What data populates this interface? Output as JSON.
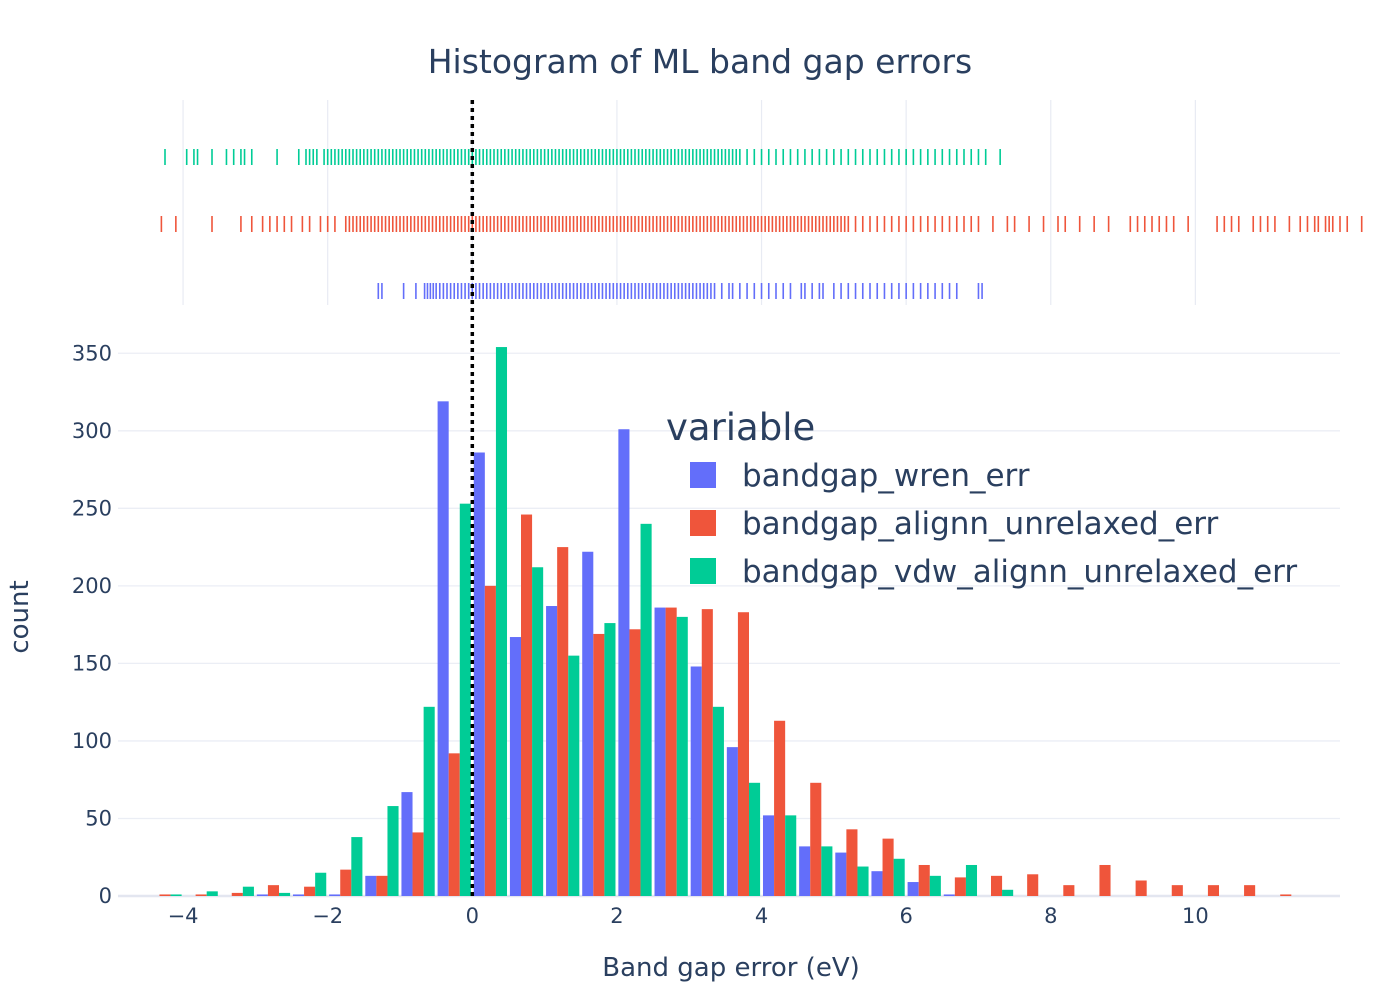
{
  "chart_data": {
    "type": "bar",
    "title": "Histogram of ML band gap errors",
    "xlabel": "Band gap error (eV)",
    "ylabel": "count",
    "xlim": [
      -4.9,
      12.0
    ],
    "ylim": [
      0,
      365
    ],
    "x_ticks": [
      -4,
      -2,
      0,
      2,
      4,
      6,
      8,
      10
    ],
    "x_tick_labels": [
      "−4",
      "−2",
      "0",
      "2",
      "4",
      "6",
      "8",
      "10"
    ],
    "y_ticks": [
      0,
      50,
      100,
      150,
      200,
      250,
      300,
      350
    ],
    "y_tick_labels": [
      "0",
      "50",
      "100",
      "150",
      "200",
      "250",
      "300",
      "350"
    ],
    "grid": true,
    "bin_width": 0.5,
    "vline": {
      "x": 0,
      "style": "dotted",
      "color": "#000000"
    },
    "legend": {
      "title": "variable",
      "placement": "top-right-inside"
    },
    "bin_centers": [
      -4.25,
      -3.75,
      -3.25,
      -2.75,
      -2.25,
      -1.75,
      -1.25,
      -0.75,
      -0.25,
      0.25,
      0.75,
      1.25,
      1.75,
      2.25,
      2.75,
      3.25,
      3.75,
      4.25,
      4.75,
      5.25,
      5.75,
      6.25,
      6.75,
      7.25,
      7.75,
      8.25,
      8.75,
      9.25,
      9.75,
      10.25,
      10.75,
      11.25
    ],
    "series": [
      {
        "name": "bandgap_wren_err",
        "color": "#636efa",
        "values": [
          0,
          0,
          0,
          1,
          1,
          1,
          13,
          67,
          319,
          286,
          167,
          187,
          222,
          301,
          186,
          148,
          96,
          52,
          32,
          28,
          16,
          9,
          1,
          0,
          0,
          0,
          0,
          0,
          0,
          0,
          0,
          0
        ],
        "rug": [
          -1.3,
          -1.25,
          -0.95,
          -0.78,
          -0.66,
          -0.62,
          -0.58,
          -0.54,
          -0.5,
          -0.45,
          -0.4,
          -0.35,
          -0.3,
          -0.25,
          -0.2,
          -0.15,
          -0.1,
          -0.05,
          0.0,
          0.05,
          0.1,
          0.15,
          0.2,
          0.25,
          0.3,
          0.35,
          0.4,
          0.45,
          0.5,
          0.55,
          0.6,
          0.65,
          0.7,
          0.75,
          0.8,
          0.85,
          0.9,
          0.95,
          1.0,
          1.05,
          1.1,
          1.15,
          1.2,
          1.25,
          1.3,
          1.35,
          1.4,
          1.45,
          1.5,
          1.55,
          1.6,
          1.65,
          1.7,
          1.75,
          1.8,
          1.85,
          1.9,
          1.95,
          2.0,
          2.05,
          2.1,
          2.15,
          2.2,
          2.25,
          2.3,
          2.35,
          2.4,
          2.45,
          2.5,
          2.55,
          2.6,
          2.65,
          2.7,
          2.75,
          2.8,
          2.85,
          2.9,
          2.95,
          3.0,
          3.05,
          3.1,
          3.15,
          3.2,
          3.25,
          3.3,
          3.35,
          3.45,
          3.55,
          3.6,
          3.7,
          3.8,
          3.9,
          4.0,
          4.1,
          4.2,
          4.3,
          4.4,
          4.55,
          4.6,
          4.7,
          4.8,
          4.85,
          5.0,
          5.1,
          5.2,
          5.3,
          5.4,
          5.5,
          5.6,
          5.7,
          5.8,
          5.9,
          6.0,
          6.1,
          6.2,
          6.3,
          6.4,
          6.5,
          6.6,
          6.7,
          7.0,
          7.05
        ]
      },
      {
        "name": "bandgap_alignn_unrelaxed_err",
        "color": "#ef553b",
        "values": [
          1,
          1,
          2,
          7,
          6,
          17,
          13,
          41,
          92,
          200,
          246,
          225,
          169,
          172,
          186,
          185,
          183,
          113,
          73,
          43,
          37,
          20,
          12,
          13,
          14,
          7,
          20,
          10,
          7,
          7,
          7,
          1
        ],
        "rug": [
          -4.3,
          -4.1,
          -3.6,
          -3.2,
          -3.05,
          -2.9,
          -2.8,
          -2.7,
          -2.6,
          -2.5,
          -2.35,
          -2.25,
          -2.1,
          -2.0,
          -1.9,
          -1.75,
          -1.7,
          -1.65,
          -1.6,
          -1.55,
          -1.5,
          -1.45,
          -1.4,
          -1.35,
          -1.3,
          -1.25,
          -1.2,
          -1.15,
          -1.1,
          -1.05,
          -1.0,
          -0.95,
          -0.9,
          -0.85,
          -0.8,
          -0.75,
          -0.7,
          -0.65,
          -0.6,
          -0.55,
          -0.5,
          -0.45,
          -0.4,
          -0.35,
          -0.3,
          -0.25,
          -0.2,
          -0.15,
          -0.1,
          -0.05,
          0.0,
          0.05,
          0.1,
          0.15,
          0.2,
          0.25,
          0.3,
          0.35,
          0.4,
          0.45,
          0.5,
          0.55,
          0.6,
          0.65,
          0.7,
          0.75,
          0.8,
          0.85,
          0.9,
          0.95,
          1.0,
          1.05,
          1.1,
          1.15,
          1.2,
          1.25,
          1.3,
          1.35,
          1.4,
          1.45,
          1.5,
          1.55,
          1.6,
          1.65,
          1.7,
          1.75,
          1.8,
          1.85,
          1.9,
          1.95,
          2.0,
          2.05,
          2.1,
          2.15,
          2.2,
          2.25,
          2.3,
          2.35,
          2.4,
          2.45,
          2.5,
          2.55,
          2.6,
          2.65,
          2.7,
          2.75,
          2.8,
          2.85,
          2.9,
          2.95,
          3.0,
          3.05,
          3.1,
          3.15,
          3.2,
          3.25,
          3.3,
          3.35,
          3.4,
          3.45,
          3.5,
          3.55,
          3.6,
          3.65,
          3.7,
          3.75,
          3.8,
          3.85,
          3.9,
          3.95,
          4.0,
          4.05,
          4.1,
          4.15,
          4.2,
          4.25,
          4.3,
          4.35,
          4.4,
          4.45,
          4.5,
          4.55,
          4.6,
          4.65,
          4.7,
          4.75,
          4.8,
          4.85,
          4.9,
          4.95,
          5.0,
          5.05,
          5.1,
          5.15,
          5.2,
          5.3,
          5.4,
          5.5,
          5.6,
          5.7,
          5.8,
          5.9,
          6.0,
          6.1,
          6.2,
          6.3,
          6.4,
          6.5,
          6.6,
          6.7,
          6.8,
          6.9,
          7.0,
          7.2,
          7.4,
          7.5,
          7.7,
          7.9,
          8.1,
          8.2,
          8.4,
          8.6,
          8.8,
          9.1,
          9.2,
          9.3,
          9.4,
          9.5,
          9.6,
          9.7,
          9.9,
          10.3,
          10.4,
          10.5,
          10.6,
          10.8,
          10.9,
          11.0,
          11.1,
          11.3,
          11.45,
          11.55,
          11.65,
          11.7,
          11.8,
          11.85,
          11.9,
          12.0,
          12.1,
          12.3
        ]
      },
      {
        "name": "bandgap_vdw_alignn_unrelaxed_err",
        "color": "#00cc96",
        "values": [
          1,
          3,
          6,
          2,
          15,
          38,
          58,
          122,
          253,
          354,
          212,
          155,
          176,
          240,
          180,
          122,
          73,
          52,
          32,
          19,
          24,
          13,
          20,
          4,
          0,
          0,
          0,
          0,
          0,
          0,
          0,
          0
        ],
        "rug": [
          -4.25,
          -3.95,
          -3.85,
          -3.8,
          -3.6,
          -3.4,
          -3.3,
          -3.2,
          -3.15,
          -3.05,
          -2.7,
          -2.4,
          -2.3,
          -2.25,
          -2.2,
          -2.15,
          -2.05,
          -2.0,
          -1.95,
          -1.9,
          -1.85,
          -1.8,
          -1.75,
          -1.7,
          -1.65,
          -1.6,
          -1.55,
          -1.5,
          -1.45,
          -1.4,
          -1.35,
          -1.3,
          -1.25,
          -1.2,
          -1.15,
          -1.1,
          -1.05,
          -1.0,
          -0.95,
          -0.9,
          -0.85,
          -0.8,
          -0.75,
          -0.7,
          -0.65,
          -0.6,
          -0.55,
          -0.5,
          -0.45,
          -0.4,
          -0.35,
          -0.3,
          -0.25,
          -0.2,
          -0.15,
          -0.1,
          -0.05,
          0.0,
          0.05,
          0.1,
          0.15,
          0.2,
          0.25,
          0.3,
          0.35,
          0.4,
          0.45,
          0.5,
          0.55,
          0.6,
          0.65,
          0.7,
          0.75,
          0.8,
          0.85,
          0.9,
          0.95,
          1.0,
          1.05,
          1.1,
          1.15,
          1.2,
          1.25,
          1.3,
          1.35,
          1.4,
          1.45,
          1.5,
          1.55,
          1.6,
          1.65,
          1.7,
          1.75,
          1.8,
          1.85,
          1.9,
          1.95,
          2.0,
          2.05,
          2.1,
          2.15,
          2.2,
          2.25,
          2.3,
          2.35,
          2.4,
          2.45,
          2.5,
          2.55,
          2.6,
          2.65,
          2.7,
          2.75,
          2.8,
          2.85,
          2.9,
          2.95,
          3.0,
          3.05,
          3.1,
          3.15,
          3.2,
          3.25,
          3.3,
          3.35,
          3.4,
          3.45,
          3.5,
          3.55,
          3.6,
          3.65,
          3.7,
          3.8,
          3.9,
          4.0,
          4.1,
          4.2,
          4.3,
          4.4,
          4.5,
          4.6,
          4.7,
          4.8,
          4.9,
          5.0,
          5.1,
          5.2,
          5.3,
          5.4,
          5.5,
          5.6,
          5.7,
          5.8,
          5.9,
          6.0,
          6.1,
          6.2,
          6.3,
          6.4,
          6.5,
          6.6,
          6.7,
          6.8,
          6.9,
          7.0,
          7.1,
          7.3
        ]
      }
    ]
  }
}
